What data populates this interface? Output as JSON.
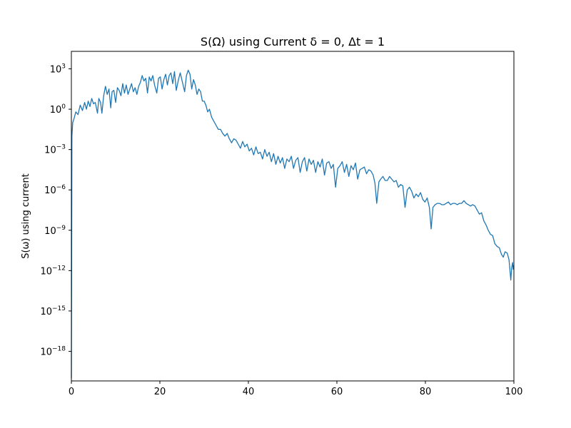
{
  "chart_data": {
    "type": "line",
    "title": "S(Ω) using Current δ = 0, Δt = 1",
    "xlabel": "",
    "ylabel": "S(ω) using current",
    "xlim": [
      0,
      100
    ],
    "ylim_log10": [
      -20.2,
      4.3
    ],
    "yscale": "log",
    "grid": false,
    "color": "#1f77b4",
    "x_ticks": [
      0,
      20,
      40,
      60,
      80,
      100
    ],
    "y_ticks": [
      {
        "base": "10",
        "exp": "3",
        "log10": 3
      },
      {
        "base": "10",
        "exp": "0",
        "log10": 0
      },
      {
        "base": "10",
        "exp": "−3",
        "log10": -3
      },
      {
        "base": "10",
        "exp": "−6",
        "log10": -6
      },
      {
        "base": "10",
        "exp": "−9",
        "log10": -9
      },
      {
        "base": "10",
        "exp": "−12",
        "log10": -12
      },
      {
        "base": "10",
        "exp": "−15",
        "log10": -15
      },
      {
        "base": "10",
        "exp": "−18",
        "log10": -18
      }
    ],
    "series": [
      {
        "points": [
          [
            0.0,
            -20.0
          ],
          [
            0.12,
            -2.0
          ],
          [
            0.3,
            -1.0
          ],
          [
            0.6,
            -0.7
          ],
          [
            1.0,
            -0.2
          ],
          [
            1.5,
            -0.4
          ],
          [
            2.0,
            0.3
          ],
          [
            2.5,
            -0.1
          ],
          [
            3.0,
            0.5
          ],
          [
            3.4,
            0.0
          ],
          [
            3.8,
            0.6
          ],
          [
            4.2,
            0.2
          ],
          [
            4.6,
            0.8
          ],
          [
            5.0,
            0.4
          ],
          [
            5.4,
            0.5
          ],
          [
            5.9,
            -0.3
          ],
          [
            6.2,
            0.8
          ],
          [
            6.6,
            0.5
          ],
          [
            6.9,
            -0.3
          ],
          [
            7.3,
            1.0
          ],
          [
            7.7,
            1.7
          ],
          [
            8.1,
            1.1
          ],
          [
            8.5,
            1.5
          ],
          [
            8.9,
            0.1
          ],
          [
            9.2,
            1.3
          ],
          [
            9.6,
            1.4
          ],
          [
            10.0,
            0.5
          ],
          [
            10.4,
            1.6
          ],
          [
            10.8,
            1.4
          ],
          [
            11.2,
            1.0
          ],
          [
            11.6,
            1.9
          ],
          [
            12.0,
            1.2
          ],
          [
            12.4,
            1.8
          ],
          [
            12.8,
            1.1
          ],
          [
            13.2,
            1.5
          ],
          [
            13.6,
            1.9
          ],
          [
            14.0,
            1.3
          ],
          [
            14.4,
            1.6
          ],
          [
            14.8,
            1.1
          ],
          [
            15.2,
            1.7
          ],
          [
            15.6,
            2.0
          ],
          [
            16.0,
            2.5
          ],
          [
            16.4,
            2.1
          ],
          [
            16.8,
            2.3
          ],
          [
            17.2,
            1.2
          ],
          [
            17.6,
            2.4
          ],
          [
            18.0,
            2.1
          ],
          [
            18.4,
            2.5
          ],
          [
            18.8,
            1.8
          ],
          [
            19.3,
            1.2
          ],
          [
            19.7,
            2.3
          ],
          [
            20.1,
            2.4
          ],
          [
            20.5,
            1.5
          ],
          [
            20.9,
            2.2
          ],
          [
            21.3,
            2.6
          ],
          [
            21.7,
            1.8
          ],
          [
            22.1,
            2.5
          ],
          [
            22.5,
            2.7
          ],
          [
            22.9,
            1.9
          ],
          [
            23.3,
            2.8
          ],
          [
            23.7,
            1.4
          ],
          [
            24.2,
            2.2
          ],
          [
            24.6,
            2.7
          ],
          [
            25.1,
            2.0
          ],
          [
            25.6,
            1.3
          ],
          [
            26.0,
            2.5
          ],
          [
            26.4,
            2.9
          ],
          [
            26.8,
            2.6
          ],
          [
            27.2,
            1.5
          ],
          [
            27.6,
            2.2
          ],
          [
            28.0,
            1.8
          ],
          [
            28.4,
            1.1
          ],
          [
            28.8,
            1.5
          ],
          [
            29.2,
            1.3
          ],
          [
            29.6,
            0.6
          ],
          [
            30.0,
            0.6
          ],
          [
            30.4,
            0.3
          ],
          [
            30.8,
            -0.2
          ],
          [
            31.2,
            0.0
          ],
          [
            31.7,
            -0.6
          ],
          [
            32.2,
            -0.9
          ],
          [
            32.7,
            -1.2
          ],
          [
            33.2,
            -1.5
          ],
          [
            33.7,
            -1.5
          ],
          [
            34.2,
            -1.8
          ],
          [
            34.7,
            -2.0
          ],
          [
            35.2,
            -1.8
          ],
          [
            35.7,
            -2.2
          ],
          [
            36.2,
            -2.5
          ],
          [
            36.7,
            -2.2
          ],
          [
            37.2,
            -2.3
          ],
          [
            37.7,
            -2.6
          ],
          [
            38.2,
            -2.9
          ],
          [
            38.7,
            -2.4
          ],
          [
            39.2,
            -2.8
          ],
          [
            39.7,
            -2.6
          ],
          [
            40.2,
            -3.1
          ],
          [
            40.7,
            -2.9
          ],
          [
            41.2,
            -3.4
          ],
          [
            41.7,
            -2.8
          ],
          [
            42.2,
            -3.3
          ],
          [
            42.7,
            -3.2
          ],
          [
            43.2,
            -3.7
          ],
          [
            43.7,
            -3.0
          ],
          [
            44.2,
            -3.5
          ],
          [
            44.7,
            -3.2
          ],
          [
            45.2,
            -3.9
          ],
          [
            45.7,
            -3.3
          ],
          [
            46.2,
            -4.1
          ],
          [
            46.7,
            -3.5
          ],
          [
            47.2,
            -4.0
          ],
          [
            47.7,
            -3.6
          ],
          [
            48.2,
            -4.4
          ],
          [
            48.7,
            -3.7
          ],
          [
            49.2,
            -3.9
          ],
          [
            49.7,
            -3.5
          ],
          [
            50.2,
            -4.4
          ],
          [
            50.7,
            -3.8
          ],
          [
            51.2,
            -3.6
          ],
          [
            51.7,
            -4.7
          ],
          [
            52.2,
            -3.9
          ],
          [
            52.7,
            -3.6
          ],
          [
            53.2,
            -4.6
          ],
          [
            53.7,
            -3.7
          ],
          [
            54.2,
            -4.1
          ],
          [
            54.7,
            -3.8
          ],
          [
            55.2,
            -4.7
          ],
          [
            55.7,
            -3.9
          ],
          [
            56.2,
            -4.3
          ],
          [
            56.7,
            -3.7
          ],
          [
            57.2,
            -4.9
          ],
          [
            57.7,
            -4.0
          ],
          [
            58.2,
            -3.9
          ],
          [
            58.7,
            -4.4
          ],
          [
            59.2,
            -4.1
          ],
          [
            59.7,
            -5.8
          ],
          [
            60.2,
            -4.4
          ],
          [
            60.7,
            -4.2
          ],
          [
            61.2,
            -3.9
          ],
          [
            61.7,
            -4.7
          ],
          [
            62.2,
            -4.1
          ],
          [
            62.7,
            -5.0
          ],
          [
            63.2,
            -4.2
          ],
          [
            63.7,
            -4.5
          ],
          [
            64.2,
            -4.0
          ],
          [
            64.7,
            -5.2
          ],
          [
            65.2,
            -4.5
          ],
          [
            65.7,
            -4.4
          ],
          [
            66.2,
            -4.3
          ],
          [
            66.7,
            -4.8
          ],
          [
            67.2,
            -4.5
          ],
          [
            67.7,
            -4.6
          ],
          [
            68.2,
            -4.9
          ],
          [
            68.6,
            -5.5
          ],
          [
            69.0,
            -7.0
          ],
          [
            69.5,
            -5.4
          ],
          [
            69.9,
            -5.2
          ],
          [
            70.4,
            -5.0
          ],
          [
            70.9,
            -5.3
          ],
          [
            71.4,
            -5.3
          ],
          [
            71.9,
            -5.0
          ],
          [
            72.4,
            -5.2
          ],
          [
            72.9,
            -5.4
          ],
          [
            73.4,
            -5.3
          ],
          [
            73.9,
            -5.8
          ],
          [
            74.4,
            -5.6
          ],
          [
            74.9,
            -5.7
          ],
          [
            75.4,
            -7.3
          ],
          [
            75.9,
            -6.0
          ],
          [
            76.4,
            -5.8
          ],
          [
            76.9,
            -6.1
          ],
          [
            77.4,
            -6.6
          ],
          [
            77.9,
            -6.3
          ],
          [
            78.4,
            -6.5
          ],
          [
            78.9,
            -6.2
          ],
          [
            79.4,
            -6.7
          ],
          [
            79.9,
            -6.9
          ],
          [
            80.4,
            -6.6
          ],
          [
            80.9,
            -7.3
          ],
          [
            81.3,
            -8.9
          ],
          [
            81.7,
            -7.3
          ],
          [
            82.2,
            -7.1
          ],
          [
            82.7,
            -7.0
          ],
          [
            83.2,
            -7.0
          ],
          [
            83.7,
            -7.1
          ],
          [
            84.2,
            -7.1
          ],
          [
            84.7,
            -7.0
          ],
          [
            85.2,
            -6.9
          ],
          [
            85.7,
            -7.1
          ],
          [
            86.2,
            -7.0
          ],
          [
            86.7,
            -7.0
          ],
          [
            87.2,
            -7.1
          ],
          [
            87.7,
            -7.0
          ],
          [
            88.2,
            -7.0
          ],
          [
            88.7,
            -6.8
          ],
          [
            89.2,
            -7.0
          ],
          [
            89.7,
            -7.1
          ],
          [
            90.2,
            -7.2
          ],
          [
            90.7,
            -7.1
          ],
          [
            91.2,
            -7.2
          ],
          [
            91.7,
            -7.5
          ],
          [
            92.2,
            -7.8
          ],
          [
            92.7,
            -7.7
          ],
          [
            93.2,
            -8.3
          ],
          [
            93.7,
            -8.6
          ],
          [
            94.2,
            -9.0
          ],
          [
            94.7,
            -9.3
          ],
          [
            95.2,
            -9.4
          ],
          [
            95.7,
            -10.0
          ],
          [
            96.2,
            -10.2
          ],
          [
            96.7,
            -10.3
          ],
          [
            97.2,
            -10.8
          ],
          [
            97.6,
            -11.0
          ],
          [
            98.0,
            -10.6
          ],
          [
            98.5,
            -10.7
          ],
          [
            98.9,
            -11.2
          ],
          [
            99.3,
            -12.7
          ],
          [
            99.5,
            -11.8
          ],
          [
            99.7,
            -11.4
          ],
          [
            99.85,
            -11.9
          ],
          [
            100.0,
            -11.6
          ]
        ]
      }
    ]
  }
}
